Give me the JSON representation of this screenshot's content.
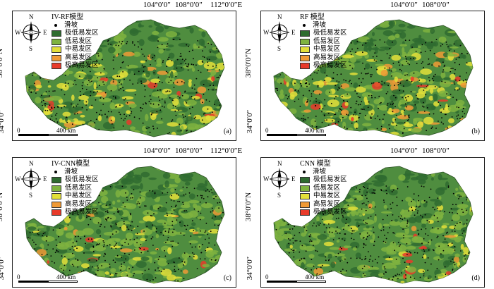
{
  "axes": {
    "lon": [
      "104°0′0″",
      "108°0′0″",
      "112°0′0″E"
    ],
    "lat": [
      "38°0′0″N",
      "34°0′0″"
    ]
  },
  "compass": {
    "n": "N",
    "s": "S",
    "e": "E",
    "w": "W"
  },
  "legend_items": [
    {
      "label": "滑坡",
      "kind": "dot"
    },
    {
      "label": "极低易发区",
      "color": "#2f6b30"
    },
    {
      "label": "低易发区",
      "color": "#7fb340"
    },
    {
      "label": "中易发区",
      "color": "#e3df3a"
    },
    {
      "label": "高易发区",
      "color": "#ef9a36"
    },
    {
      "label": "极高易发区",
      "color": "#e83a2a"
    }
  ],
  "scale": {
    "zero": "0",
    "distance": "400 km"
  },
  "panels": [
    {
      "title": "IV-RF模型",
      "label": "(a)"
    },
    {
      "title": "RF 模型",
      "label": "(b)"
    },
    {
      "title": "IV-CNN模型",
      "label": "(c)"
    },
    {
      "title": "CNN 模型",
      "label": "(d)"
    }
  ]
}
